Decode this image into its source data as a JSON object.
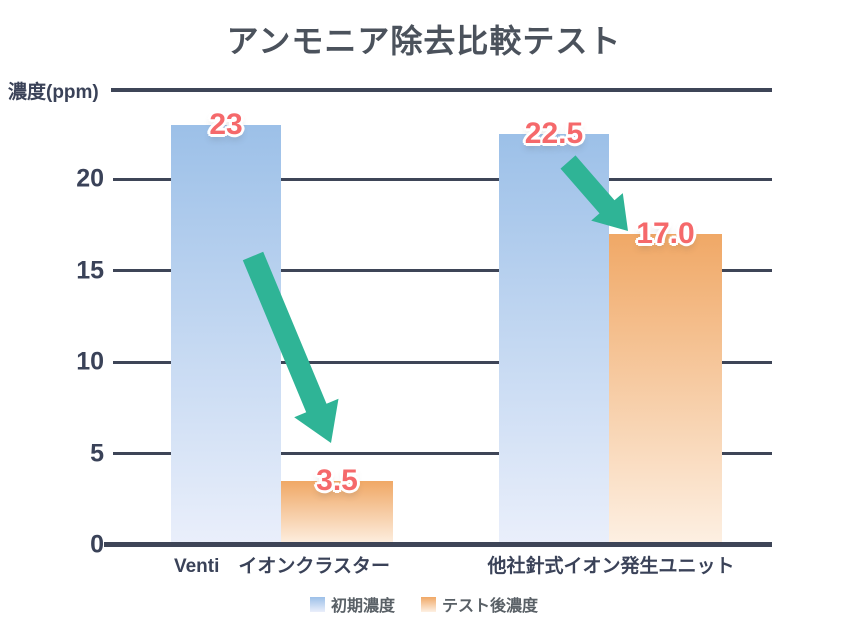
{
  "chart_data": {
    "type": "bar",
    "title": "アンモニア除去比較テスト",
    "ylabel": "濃度(ppm)",
    "xlabel": "",
    "categories": [
      "Venti　イオンクラスター",
      "他社針式イオン発生ユニット"
    ],
    "series": [
      {
        "name": "初期濃度",
        "values": [
          23,
          22.5
        ],
        "value_labels": [
          "23",
          "22.5"
        ]
      },
      {
        "name": "テスト後濃度",
        "values": [
          3.5,
          17.0
        ],
        "value_labels": [
          "3.5",
          "17.0"
        ]
      }
    ],
    "ylim": [
      0,
      25
    ],
    "yticks": [
      0,
      5,
      10,
      15,
      20
    ],
    "grid": true,
    "legend_position": "bottom",
    "annotations": [
      {
        "type": "arrow",
        "meaning": "decrease",
        "category": "Venti　イオンクラスター",
        "from_value": 23,
        "to_value": 3.5
      },
      {
        "type": "arrow",
        "meaning": "decrease",
        "category": "他社針式イオン発生ユニット",
        "from_value": 22.5,
        "to_value": 17.0
      }
    ]
  },
  "colors": {
    "title_text": "#4b525c",
    "axis_text": "#3a4258",
    "grid_line": "#3e4557",
    "bar_initial_top": "#9cc0e8",
    "bar_initial_bottom": "#eaeffb",
    "bar_after_top": "#f0a866",
    "bar_after_bottom": "#fdf0e3",
    "value_label": "#f5696b",
    "arrow": "#2fb496",
    "legend_text": "#596066"
  }
}
